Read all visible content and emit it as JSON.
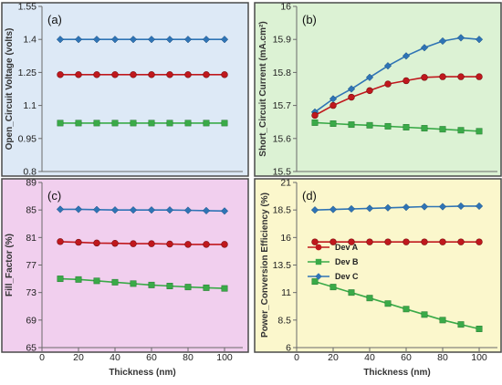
{
  "chart_data": [
    {
      "type": "line",
      "panel_label": "(a)",
      "ylabel": "Open_Circuit Voltage (volts)",
      "xlabel": "",
      "background": "#dde9f6",
      "ylim": [
        0.8,
        1.55
      ],
      "yticks": [
        0.8,
        0.95,
        1.1,
        1.25,
        1.4,
        1.55
      ],
      "ytick_labels": [
        "0.8",
        "0.95",
        "1.1",
        "1.25",
        "1.4",
        "1.55"
      ],
      "xlim": [
        0,
        110
      ],
      "xticks": [],
      "x": [
        10,
        20,
        30,
        40,
        50,
        60,
        70,
        80,
        90,
        100
      ],
      "series": [
        {
          "values": [
            1.4,
            1.4,
            1.4,
            1.4,
            1.4,
            1.4,
            1.4,
            1.4,
            1.4,
            1.4
          ],
          "color": "#2f74b5",
          "marker": "diamond"
        },
        {
          "values": [
            1.24,
            1.24,
            1.24,
            1.24,
            1.24,
            1.24,
            1.24,
            1.24,
            1.24,
            1.24
          ],
          "color": "#c0181d",
          "marker": "circle"
        },
        {
          "values": [
            1.02,
            1.02,
            1.02,
            1.02,
            1.02,
            1.02,
            1.02,
            1.02,
            1.02,
            1.02
          ],
          "color": "#3aaa48",
          "marker": "square"
        }
      ]
    },
    {
      "type": "line",
      "panel_label": "(b)",
      "ylabel": "Short_Circuit Current (mA.cm²)",
      "xlabel": "",
      "background": "#dcf2d4",
      "ylim": [
        15.5,
        16
      ],
      "yticks": [
        15.5,
        15.6,
        15.7,
        15.8,
        15.9,
        16
      ],
      "ytick_labels": [
        "15.5",
        "15.6",
        "15.7",
        "15.8",
        "15.9",
        "16"
      ],
      "xlim": [
        0,
        110
      ],
      "xticks": [],
      "x": [
        10,
        20,
        30,
        40,
        50,
        60,
        70,
        80,
        90,
        100
      ],
      "series": [
        {
          "values": [
            15.68,
            15.72,
            15.75,
            15.785,
            15.82,
            15.85,
            15.875,
            15.895,
            15.905,
            15.9
          ],
          "color": "#2f74b5",
          "marker": "diamond"
        },
        {
          "values": [
            15.67,
            15.7,
            15.725,
            15.745,
            15.765,
            15.775,
            15.785,
            15.787,
            15.787,
            15.787
          ],
          "color": "#c0181d",
          "marker": "circle"
        },
        {
          "values": [
            15.648,
            15.645,
            15.642,
            15.64,
            15.637,
            15.634,
            15.631,
            15.628,
            15.625,
            15.622
          ],
          "color": "#3aaa48",
          "marker": "square"
        }
      ]
    },
    {
      "type": "line",
      "panel_label": "(c)",
      "ylabel": "Fill_Factor (%)",
      "xlabel": "Thickness (nm)",
      "background": "#f1cfee",
      "ylim": [
        65,
        89
      ],
      "yticks": [
        65,
        69,
        73,
        77,
        81,
        85,
        89
      ],
      "ytick_labels": [
        "65",
        "69",
        "73",
        "77",
        "81",
        "85",
        "89"
      ],
      "xlim": [
        0,
        110
      ],
      "xticks": [
        0,
        20,
        40,
        60,
        80,
        100
      ],
      "xtick_labels": [
        "0",
        "20",
        "40",
        "60",
        "80",
        "100"
      ],
      "x": [
        10,
        20,
        30,
        40,
        50,
        60,
        70,
        80,
        90,
        100
      ],
      "series": [
        {
          "values": [
            85.1,
            85.1,
            85.05,
            85.0,
            85.0,
            85.0,
            85.0,
            84.95,
            84.9,
            84.85
          ],
          "color": "#2f74b5",
          "marker": "diamond"
        },
        {
          "values": [
            80.4,
            80.3,
            80.2,
            80.15,
            80.1,
            80.1,
            80.05,
            80.0,
            80.0,
            80.0
          ],
          "color": "#c0181d",
          "marker": "circle"
        },
        {
          "values": [
            75.0,
            74.9,
            74.7,
            74.5,
            74.3,
            74.1,
            73.95,
            73.8,
            73.7,
            73.6
          ],
          "color": "#3aaa48",
          "marker": "square"
        }
      ]
    },
    {
      "type": "line",
      "panel_label": "(d)",
      "ylabel": "Power_Conversion Efficiency (%)",
      "xlabel": "Thickness (nm)",
      "background": "#fbf7cc",
      "ylim": [
        6,
        21
      ],
      "yticks": [
        6,
        8.5,
        11,
        13.5,
        16,
        18.5,
        21
      ],
      "ytick_labels": [
        "6",
        "8.5",
        "11",
        "13.5",
        "16",
        "18.5",
        "21"
      ],
      "xlim": [
        0,
        110
      ],
      "xticks": [
        0,
        20,
        40,
        60,
        80,
        100
      ],
      "xtick_labels": [
        "0",
        "20",
        "40",
        "60",
        "80",
        "100"
      ],
      "x": [
        10,
        20,
        30,
        40,
        50,
        60,
        70,
        80,
        90,
        100
      ],
      "legend_position": "center-left",
      "series": [
        {
          "name": "Dev A",
          "values": [
            15.6,
            15.6,
            15.6,
            15.6,
            15.6,
            15.6,
            15.6,
            15.6,
            15.6,
            15.6
          ],
          "color": "#c0181d",
          "marker": "circle"
        },
        {
          "name": "Dev B",
          "values": [
            12.0,
            11.5,
            11.0,
            10.5,
            10.0,
            9.5,
            9.0,
            8.5,
            8.1,
            7.7
          ],
          "color": "#3aaa48",
          "marker": "square"
        },
        {
          "name": "Dev C",
          "values": [
            18.5,
            18.55,
            18.6,
            18.65,
            18.7,
            18.75,
            18.8,
            18.8,
            18.85,
            18.85
          ],
          "color": "#2f74b5",
          "marker": "diamond"
        }
      ]
    }
  ]
}
